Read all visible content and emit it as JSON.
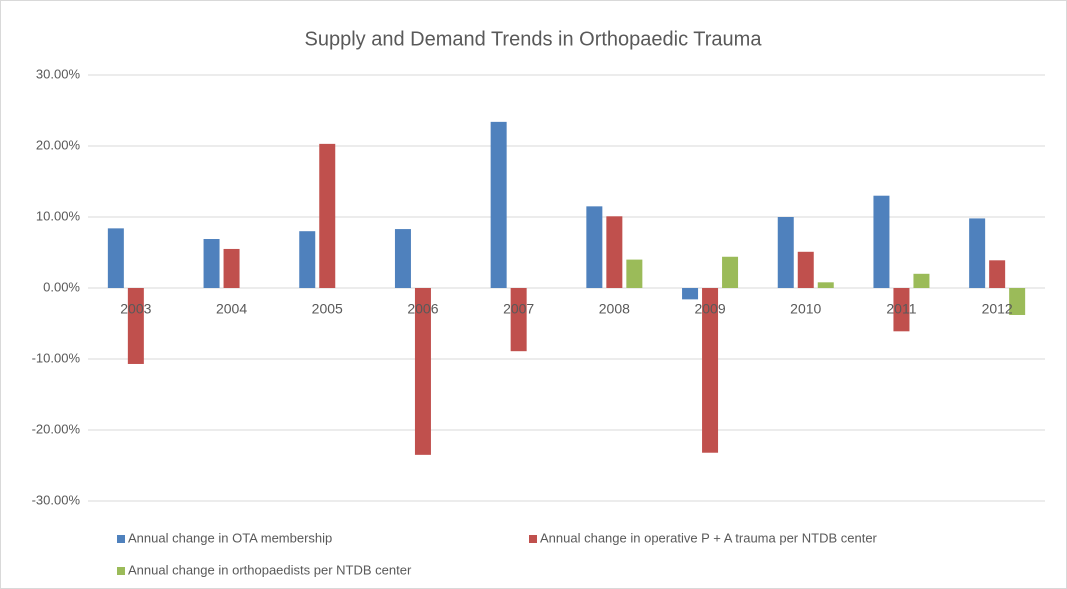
{
  "chart_data": {
    "type": "bar",
    "title": "Supply and Demand Trends in Orthopaedic Trauma",
    "categories": [
      "2003",
      "2004",
      "2005",
      "2006",
      "2007",
      "2008",
      "2009",
      "2010",
      "2011",
      "2012"
    ],
    "series": [
      {
        "name": "Annual change in OTA membership",
        "color": "#4f81bd",
        "values": [
          8.4,
          6.9,
          8.0,
          8.3,
          23.4,
          11.5,
          -1.6,
          10.0,
          13.0,
          9.8
        ]
      },
      {
        "name": "Annual change in operative P + A trauma per NTDB center",
        "color": "#c0504d",
        "values": [
          -10.7,
          5.5,
          20.3,
          -23.5,
          -8.9,
          10.1,
          -23.2,
          5.1,
          -6.1,
          3.9
        ]
      },
      {
        "name": "Annual change in orthopaedists per NTDB center",
        "color": "#9bbb59",
        "values": [
          null,
          null,
          null,
          null,
          null,
          4.0,
          4.4,
          0.8,
          2.0,
          -3.8
        ]
      }
    ],
    "ylim": [
      -30,
      30
    ],
    "yticks": [
      {
        "value": -30,
        "label": "-30.00%"
      },
      {
        "value": -20,
        "label": "-20.00%"
      },
      {
        "value": -10,
        "label": "-10.00%"
      },
      {
        "value": 0,
        "label": "0.00%"
      },
      {
        "value": 10,
        "label": "10.00%"
      },
      {
        "value": 20,
        "label": "20.00%"
      },
      {
        "value": 30,
        "label": "30.00%"
      }
    ],
    "grid": true,
    "legend": "bottom"
  }
}
